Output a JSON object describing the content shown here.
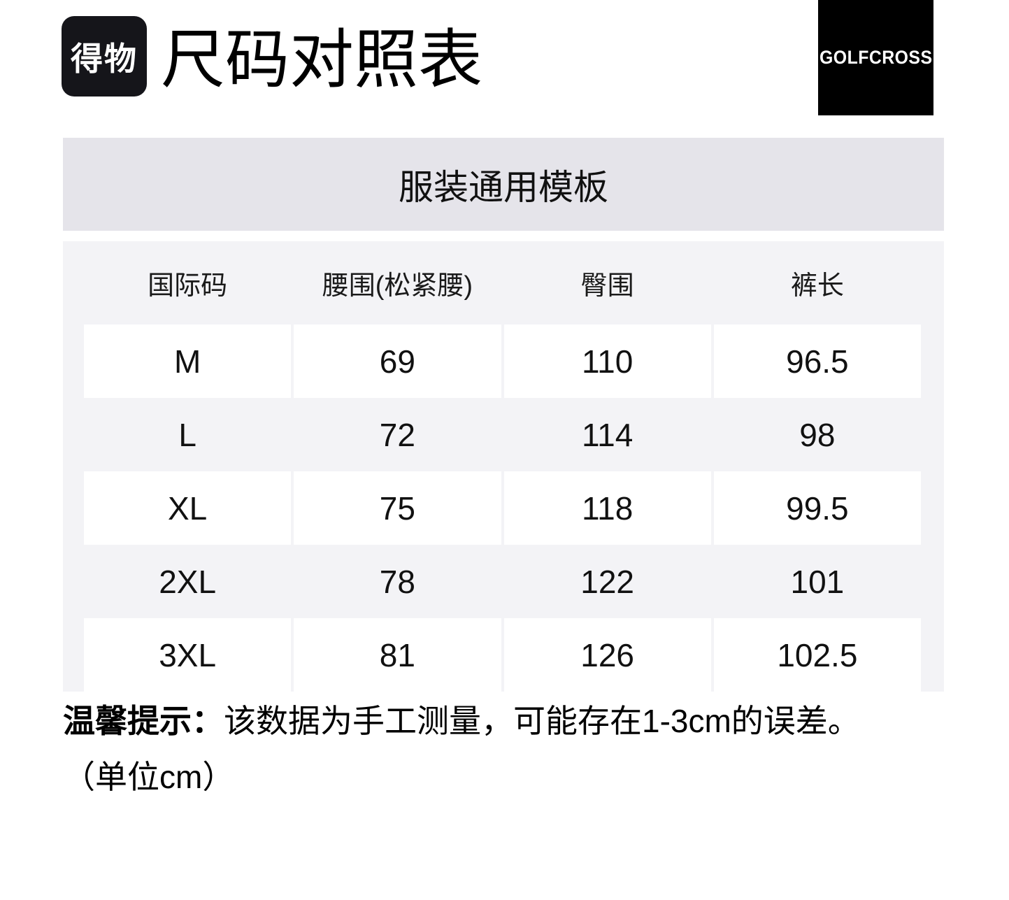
{
  "header": {
    "logo_text": "得物",
    "title": "尺码对照表",
    "brand": "GOLFCROSS"
  },
  "template_bar": {
    "label": "服装通用模板"
  },
  "size_table": {
    "columns": [
      "国际码",
      "腰围(松紧腰)",
      "臀围",
      "裤长"
    ],
    "rows": [
      [
        "M",
        "69",
        "110",
        "96.5"
      ],
      [
        "L",
        "72",
        "114",
        "98"
      ],
      [
        "XL",
        "75",
        "118",
        "99.5"
      ],
      [
        "2XL",
        "78",
        "122",
        "101"
      ],
      [
        "3XL",
        "81",
        "126",
        "102.5"
      ]
    ]
  },
  "notes": {
    "tip_label": "温馨提示：",
    "tip_text": "该数据为手工测量，可能存在1-3cm的误差。",
    "unit_text": "（单位cm）"
  },
  "colors": {
    "logo_bg": "#15151a",
    "brand_badge_bg": "#000000",
    "template_bar_bg": "#e5e4ea",
    "table_section_bg": "#f3f3f6",
    "table_cell_bg": "#ffffff",
    "text": "#111111"
  }
}
